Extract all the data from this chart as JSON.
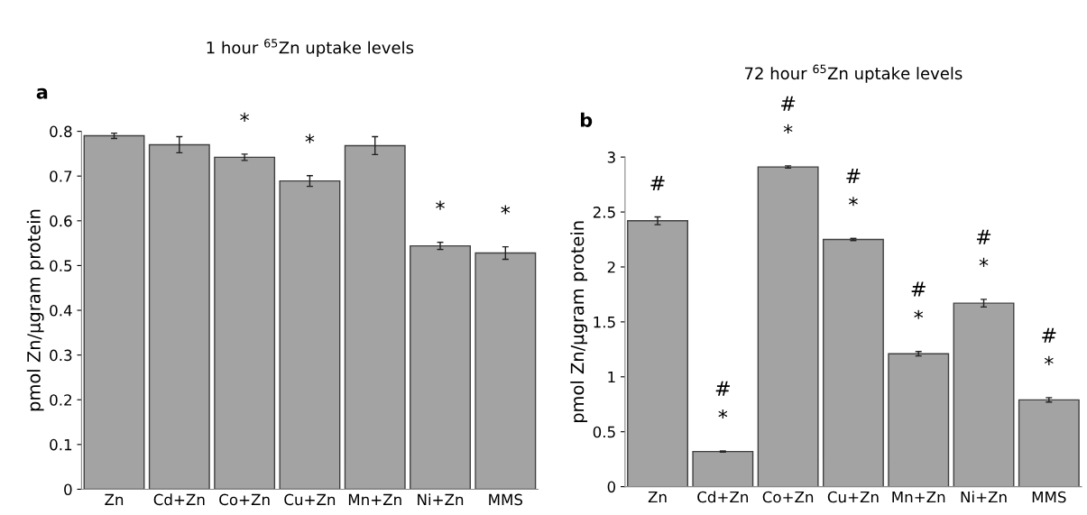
{
  "chart_data": [
    {
      "type": "bar",
      "title": "1 hour $^{65}$Zn uptake levels",
      "ylabel": "pmol Zn/μgram protein",
      "categories": [
        "Zn",
        "Cd+Zn",
        "Co+Zn",
        "Cu+Zn",
        "Mn+Zn",
        "Ni+Zn",
        "MMS"
      ],
      "values": [
        0.79,
        0.77,
        0.742,
        0.689,
        0.768,
        0.544,
        0.528
      ],
      "errors": [
        0.006,
        0.018,
        0.007,
        0.012,
        0.02,
        0.008,
        0.014
      ],
      "value_labels": [
        null,
        null,
        "*",
        "*",
        null,
        "*",
        "*"
      ],
      "color": "#a3a3a3",
      "ylim": [
        0,
        0.8
      ],
      "yticks": [
        0,
        0.1,
        0.2,
        0.3,
        0.4,
        0.5,
        0.6,
        0.7,
        0.8
      ],
      "grid": false,
      "annotations": [
        "a"
      ]
    },
    {
      "type": "bar",
      "title": "72 hour $^{65}$Zn uptake levels",
      "ylabel": "pmol Zn/μgram protein",
      "categories": [
        "Zn",
        "Cd+Zn",
        "Co+Zn",
        "Cu+Zn",
        "Mn+Zn",
        "Ni+Zn",
        "MMS"
      ],
      "values": [
        2.42,
        0.32,
        2.91,
        2.25,
        1.21,
        1.67,
        0.79
      ],
      "errors": [
        0.035,
        0.005,
        0.01,
        0.01,
        0.02,
        0.035,
        0.02
      ],
      "value_labels": [
        "#",
        "#\n*",
        "#\n*",
        "#\n*",
        "#\n*",
        "#\n*",
        "#\n*"
      ],
      "color": "#a3a3a3",
      "ylim": [
        0,
        3
      ],
      "yticks": [
        0,
        0.5,
        1,
        1.5,
        2,
        2.5,
        3
      ],
      "grid": false,
      "annotations": [
        "b"
      ]
    }
  ]
}
